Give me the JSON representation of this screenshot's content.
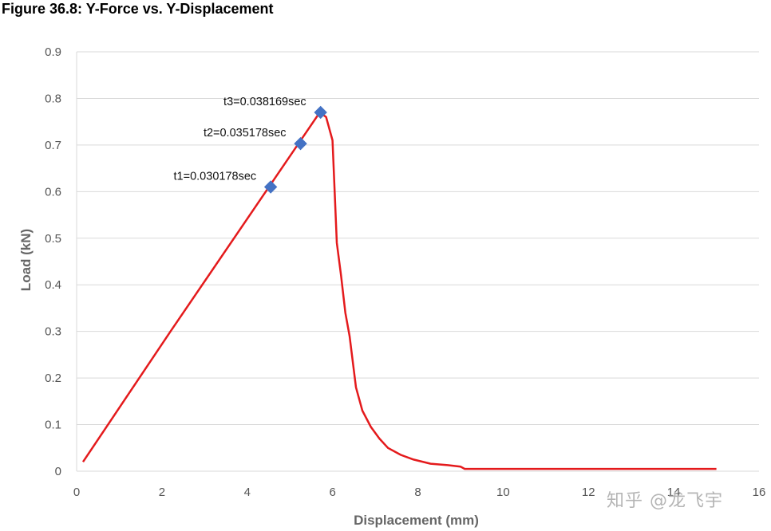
{
  "figure_title": "Figure 36.8: Y-Force vs. Y-Displacement",
  "watermark": "知乎 @龙飞宇",
  "colors": {
    "line": "#e41a1c",
    "marker": "#4472c4",
    "grid": "#d9d9d9",
    "axis_text": "#555555"
  },
  "chart_data": {
    "type": "scatter",
    "title": "",
    "xlabel": "Displacement (mm)",
    "ylabel": "Load (kN)",
    "xlim": [
      0,
      16
    ],
    "ylim": [
      0,
      0.9
    ],
    "xticks": [
      0,
      2,
      4,
      6,
      8,
      10,
      12,
      14,
      16
    ],
    "xtick_labels": [
      "0",
      "2",
      "4",
      "6",
      "8",
      "10",
      "12",
      "14",
      "16"
    ],
    "yticks": [
      0,
      0.1,
      0.2,
      0.3,
      0.4,
      0.5,
      0.6,
      0.7,
      0.8,
      0.9
    ],
    "ytick_labels": [
      "0",
      "0.1",
      "0.2",
      "0.3",
      "0.4",
      "0.5",
      "0.6",
      "0.7",
      "0.8",
      "0.9"
    ],
    "grid": "horizontal",
    "series": [
      {
        "kind": "line",
        "x": [
          0.15,
          2.2,
          5.7,
          5.85,
          6.0,
          6.05,
          6.1,
          6.2,
          6.3,
          6.4,
          6.55,
          6.7,
          6.9,
          7.1,
          7.3,
          7.6,
          7.9,
          8.3,
          8.7,
          9.0,
          9.1,
          11.0,
          13.0,
          15.0
        ],
        "y": [
          0.02,
          0.3,
          0.77,
          0.76,
          0.71,
          0.6,
          0.49,
          0.42,
          0.34,
          0.29,
          0.18,
          0.13,
          0.095,
          0.07,
          0.05,
          0.035,
          0.025,
          0.016,
          0.013,
          0.01,
          0.005,
          0.005,
          0.005,
          0.005
        ]
      },
      {
        "kind": "markers",
        "x": [
          4.55,
          5.25,
          5.72
        ],
        "y": [
          0.61,
          0.703,
          0.77
        ]
      }
    ],
    "annotations": [
      {
        "text": "t1=0.030178sec",
        "x": 4.55,
        "y": 0.61
      },
      {
        "text": "t2=0.035178sec",
        "x": 5.25,
        "y": 0.703
      },
      {
        "text": "t3=0.038169sec",
        "x": 5.72,
        "y": 0.77
      }
    ]
  }
}
